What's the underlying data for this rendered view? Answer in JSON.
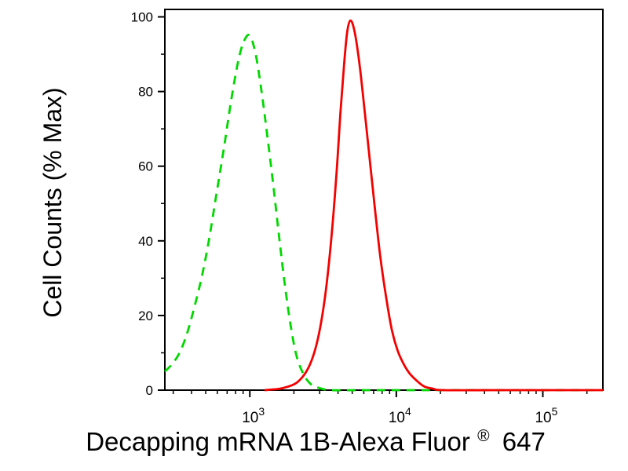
{
  "chart_data": {
    "type": "line",
    "title": "",
    "subtitle": "",
    "xlabel": "Decapping mRNA 1B-Alexa Fluor® 647",
    "xlabel_parts": {
      "pre": "Decapping mRNA 1B-Alexa Fluor",
      "sup": "®",
      "post": "647"
    },
    "ylabel": "Cell Counts (% Max)",
    "x_scale": "log10",
    "x_range_log": [
      2.42,
      5.41
    ],
    "x_tick_base": "10",
    "x_major_exponents": [
      3,
      4,
      5
    ],
    "x_major_tick_values": [
      1000,
      10000,
      100000
    ],
    "ylim": [
      0,
      102
    ],
    "y_ticks": [
      0,
      20,
      40,
      60,
      80,
      100
    ],
    "y_minor_step": 10,
    "grid": false,
    "legend": null,
    "background": "#ffffff",
    "axis_color": "#000000",
    "series": [
      {
        "name": "green-dashed-curve",
        "label": "green dashed histogram",
        "color": "#00d800",
        "line_style": "dashed",
        "dash": "11 8",
        "stroke_width": 2.8,
        "peak_log10x": 3.0,
        "peak_pct": 95,
        "points_log10x_pct": [
          [
            2.42,
            5
          ],
          [
            2.47,
            7
          ],
          [
            2.52,
            10
          ],
          [
            2.57,
            15
          ],
          [
            2.62,
            22
          ],
          [
            2.67,
            30
          ],
          [
            2.72,
            40
          ],
          [
            2.77,
            52
          ],
          [
            2.82,
            64
          ],
          [
            2.87,
            77
          ],
          [
            2.92,
            88
          ],
          [
            2.96,
            93.5
          ],
          [
            3.0,
            95
          ],
          [
            3.04,
            90
          ],
          [
            3.08,
            80
          ],
          [
            3.12,
            68
          ],
          [
            3.16,
            55
          ],
          [
            3.2,
            41
          ],
          [
            3.24,
            28
          ],
          [
            3.28,
            17
          ],
          [
            3.32,
            9
          ],
          [
            3.37,
            4
          ],
          [
            3.42,
            1.5
          ],
          [
            3.48,
            0.5
          ],
          [
            3.56,
            0
          ],
          [
            3.8,
            0
          ],
          [
            4.2,
            0
          ],
          [
            4.8,
            0
          ],
          [
            5.41,
            0
          ]
        ]
      },
      {
        "name": "red-solid-curve",
        "label": "red solid histogram",
        "color": "#f40000",
        "line_style": "solid",
        "dash": "",
        "stroke_width": 2.8,
        "peak_log10x": 3.68,
        "peak_pct": 99,
        "points_log10x_pct": [
          [
            3.1,
            0
          ],
          [
            3.16,
            0.2
          ],
          [
            3.22,
            0.5
          ],
          [
            3.32,
            2
          ],
          [
            3.4,
            6
          ],
          [
            3.46,
            13
          ],
          [
            3.51,
            24
          ],
          [
            3.55,
            38
          ],
          [
            3.59,
            57
          ],
          [
            3.62,
            75
          ],
          [
            3.645,
            88
          ],
          [
            3.665,
            96
          ],
          [
            3.685,
            99
          ],
          [
            3.71,
            97
          ],
          [
            3.74,
            90
          ],
          [
            3.77,
            80
          ],
          [
            3.81,
            65
          ],
          [
            3.85,
            50
          ],
          [
            3.89,
            36
          ],
          [
            3.93,
            25
          ],
          [
            3.97,
            16
          ],
          [
            4.01,
            10.5
          ],
          [
            4.05,
            7
          ],
          [
            4.09,
            4.5
          ],
          [
            4.14,
            2.5
          ],
          [
            4.19,
            1
          ],
          [
            4.25,
            0.4
          ],
          [
            4.32,
            0
          ],
          [
            4.7,
            0
          ],
          [
            5.05,
            0
          ],
          [
            5.41,
            0
          ]
        ]
      }
    ]
  }
}
